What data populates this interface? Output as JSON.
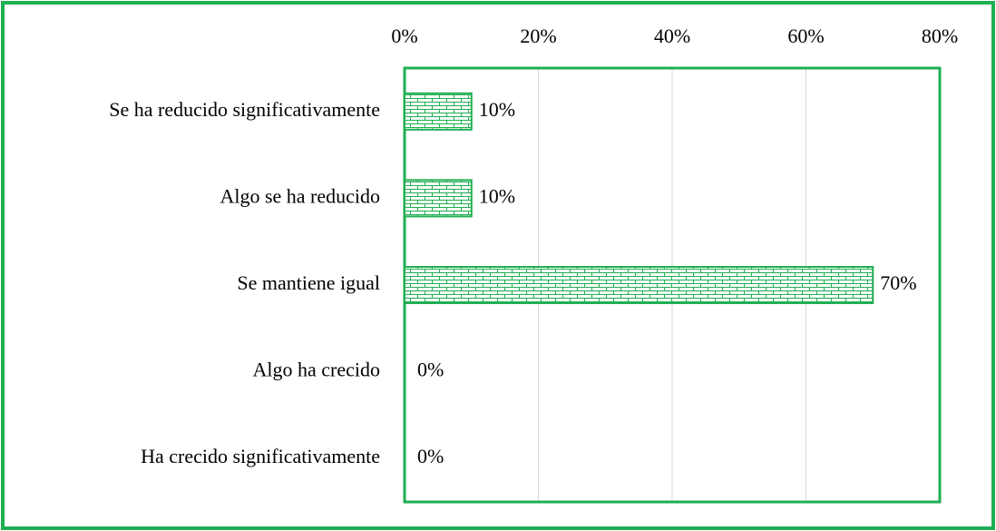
{
  "chart_data": {
    "type": "barh",
    "categories": [
      "Se ha reducido significativamente",
      "Algo se ha reducido",
      "Se mantiene igual",
      "Algo ha crecido",
      "Ha crecido significativamente"
    ],
    "values": [
      10,
      10,
      70,
      0,
      0
    ],
    "value_labels": [
      "10%",
      "10%",
      "70%",
      "0%",
      "0%"
    ],
    "color": "#1fae52",
    "xlim": [
      0,
      80
    ],
    "xticks": [
      {
        "value": 0,
        "label": "0%"
      },
      {
        "value": 20,
        "label": "20%"
      },
      {
        "value": 40,
        "label": "40%"
      },
      {
        "value": 60,
        "label": "60%"
      },
      {
        "value": 80,
        "label": "80%"
      }
    ],
    "grid": true
  }
}
